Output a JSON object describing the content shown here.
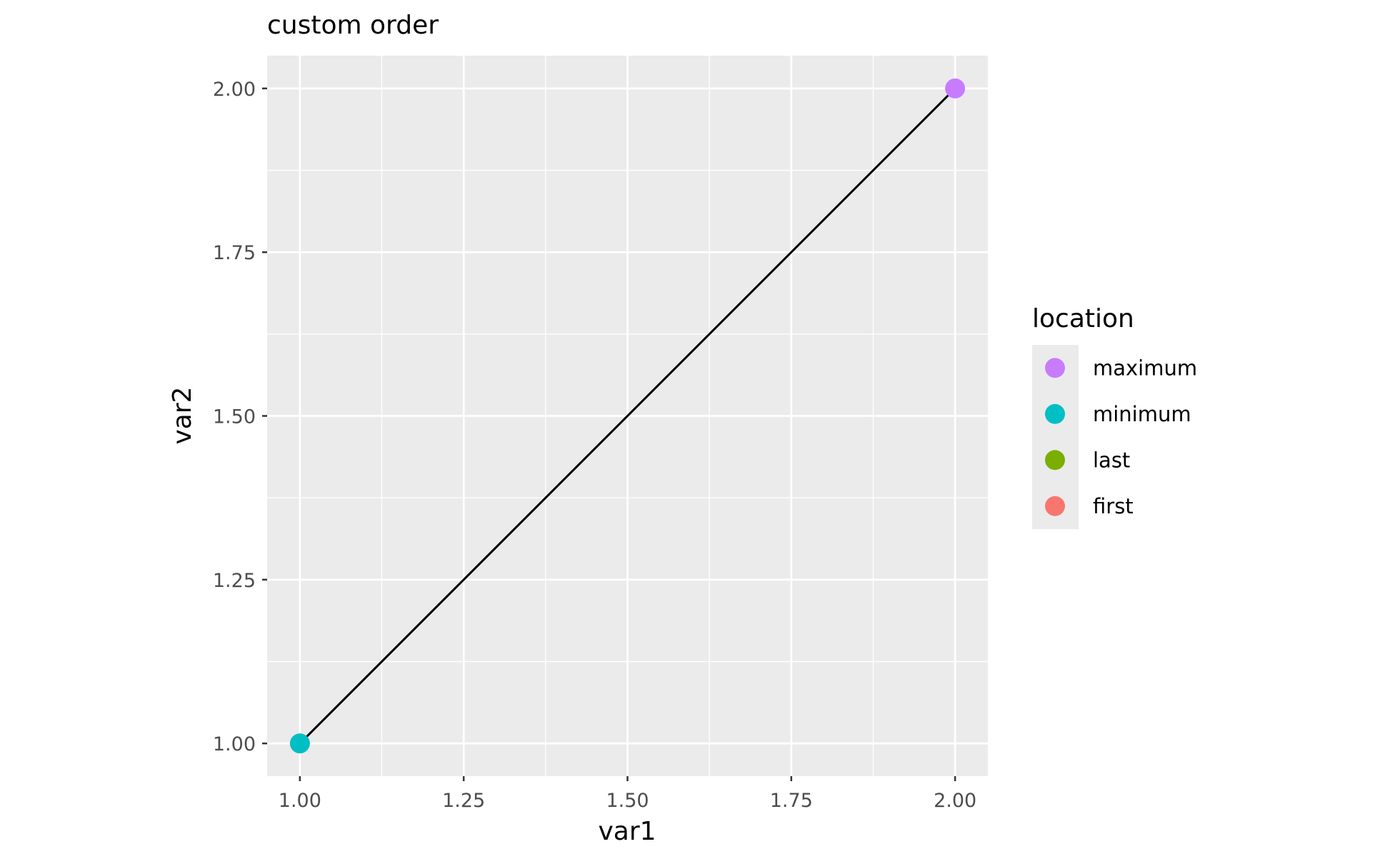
{
  "chart_data": {
    "type": "scatter",
    "title": "custom order",
    "xlabel": "var1",
    "ylabel": "var2",
    "xlim": [
      0.95,
      2.05
    ],
    "ylim": [
      0.95,
      2.05
    ],
    "x_ticks": [
      1.0,
      1.25,
      1.5,
      1.75,
      2.0
    ],
    "x_tick_labels": [
      "1.00",
      "1.25",
      "1.50",
      "1.75",
      "2.00"
    ],
    "y_ticks": [
      1.0,
      1.25,
      1.5,
      1.75,
      2.0
    ],
    "y_tick_labels": [
      "1.00",
      "1.25",
      "1.50",
      "1.75",
      "2.00"
    ],
    "grid": true,
    "panel_background": "#EBEBEB",
    "line": {
      "color": "#000000",
      "points": [
        {
          "x": 1.0,
          "y": 1.0
        },
        {
          "x": 2.0,
          "y": 2.0
        }
      ]
    },
    "points": [
      {
        "x": 2.0,
        "y": 2.0,
        "location": "maximum",
        "color": "#C77CFF"
      },
      {
        "x": 1.0,
        "y": 1.0,
        "location": "minimum",
        "color": "#00BFC4"
      }
    ],
    "legend": {
      "title": "location",
      "placement": "right",
      "entries": [
        {
          "label": "maximum",
          "color": "#C77CFF"
        },
        {
          "label": "minimum",
          "color": "#00BFC4"
        },
        {
          "label": "last",
          "color": "#7CAE00"
        },
        {
          "label": "first",
          "color": "#F8766D"
        }
      ]
    }
  }
}
